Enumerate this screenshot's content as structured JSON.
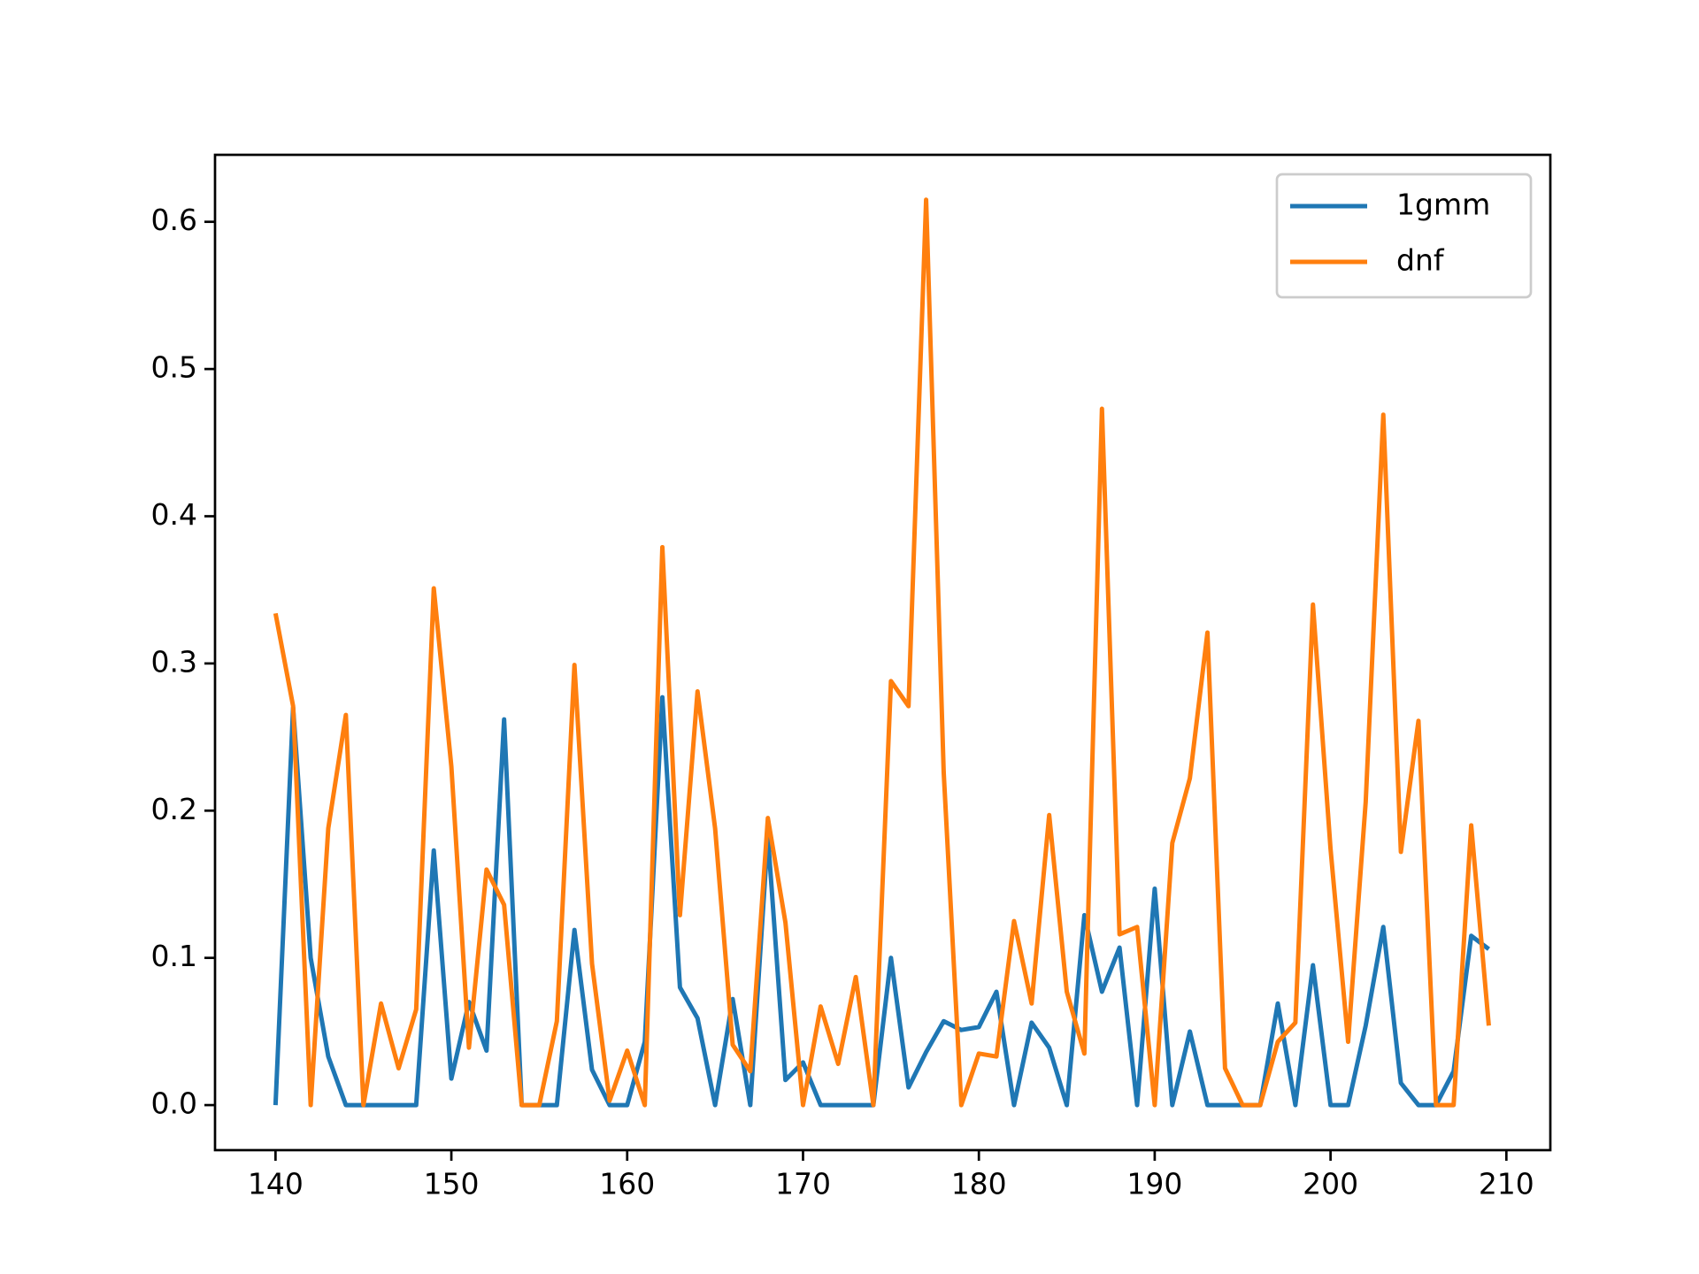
{
  "chart_data": {
    "type": "line",
    "x": [
      140,
      141,
      142,
      143,
      144,
      145,
      146,
      147,
      148,
      149,
      150,
      151,
      152,
      153,
      154,
      155,
      156,
      157,
      158,
      159,
      160,
      161,
      162,
      163,
      164,
      165,
      166,
      167,
      168,
      169,
      170,
      171,
      172,
      173,
      174,
      175,
      176,
      177,
      178,
      179,
      180,
      181,
      182,
      183,
      184,
      185,
      186,
      187,
      188,
      189,
      190,
      191,
      192,
      193,
      194,
      195,
      196,
      197,
      198,
      199,
      200,
      201,
      202,
      203,
      204,
      205,
      206,
      207,
      208,
      209
    ],
    "series": [
      {
        "name": "1gmm",
        "color": "#1f77b4",
        "values": [
          0,
          0.27,
          0.1,
          0.033,
          0,
          0,
          0,
          0,
          0,
          0.173,
          0.018,
          0.07,
          0.037,
          0.262,
          0,
          0,
          0,
          0.119,
          0.024,
          0,
          0,
          0.043,
          0.277,
          0.08,
          0.059,
          0,
          0.072,
          0,
          0.183,
          0.017,
          0.029,
          0,
          0,
          0,
          0,
          0.1,
          0.012,
          0.036,
          0.057,
          0.051,
          0.053,
          0.077,
          0,
          0.056,
          0.039,
          0,
          0.129,
          0.077,
          0.107,
          0,
          0.147,
          0,
          0.05,
          0,
          0,
          0,
          0,
          0.069,
          0,
          0.095,
          0,
          0,
          0.054,
          0.121,
          0.015,
          0,
          0,
          0.023,
          0.115,
          0.106
        ]
      },
      {
        "name": "dnf",
        "color": "#ff7f0e",
        "values": [
          0.334,
          0.271,
          0,
          0.188,
          0.265,
          0,
          0.069,
          0.025,
          0.065,
          0.351,
          0.23,
          0.039,
          0.16,
          0.136,
          0,
          0,
          0.057,
          0.299,
          0.096,
          0.003,
          0.037,
          0,
          0.379,
          0.129,
          0.281,
          0.188,
          0.041,
          0.023,
          0.195,
          0.124,
          0,
          0.067,
          0.028,
          0.087,
          0,
          0.288,
          0.271,
          0.615,
          0.226,
          0,
          0.035,
          0.033,
          0.125,
          0.069,
          0.197,
          0.077,
          0.035,
          0.473,
          0.116,
          0.121,
          0,
          0.178,
          0.222,
          0.321,
          0.025,
          0,
          0,
          0.043,
          0.056,
          0.34,
          0.174,
          0.043,
          0.206,
          0.469,
          0.172,
          0.261,
          0,
          0,
          0.19,
          0.054
        ]
      }
    ],
    "xlim": [
      136.56,
      212.5
    ],
    "xticks": [
      140,
      150,
      160,
      170,
      180,
      190,
      200,
      210
    ],
    "ylim": [
      -0.0306,
      0.6455
    ],
    "yticks": [
      {
        "value": 0,
        "label": "0.0"
      },
      0.1,
      0.2,
      0.3,
      0.4,
      0.5,
      0.6
    ],
    "legend": "upper right",
    "grid": false
  }
}
